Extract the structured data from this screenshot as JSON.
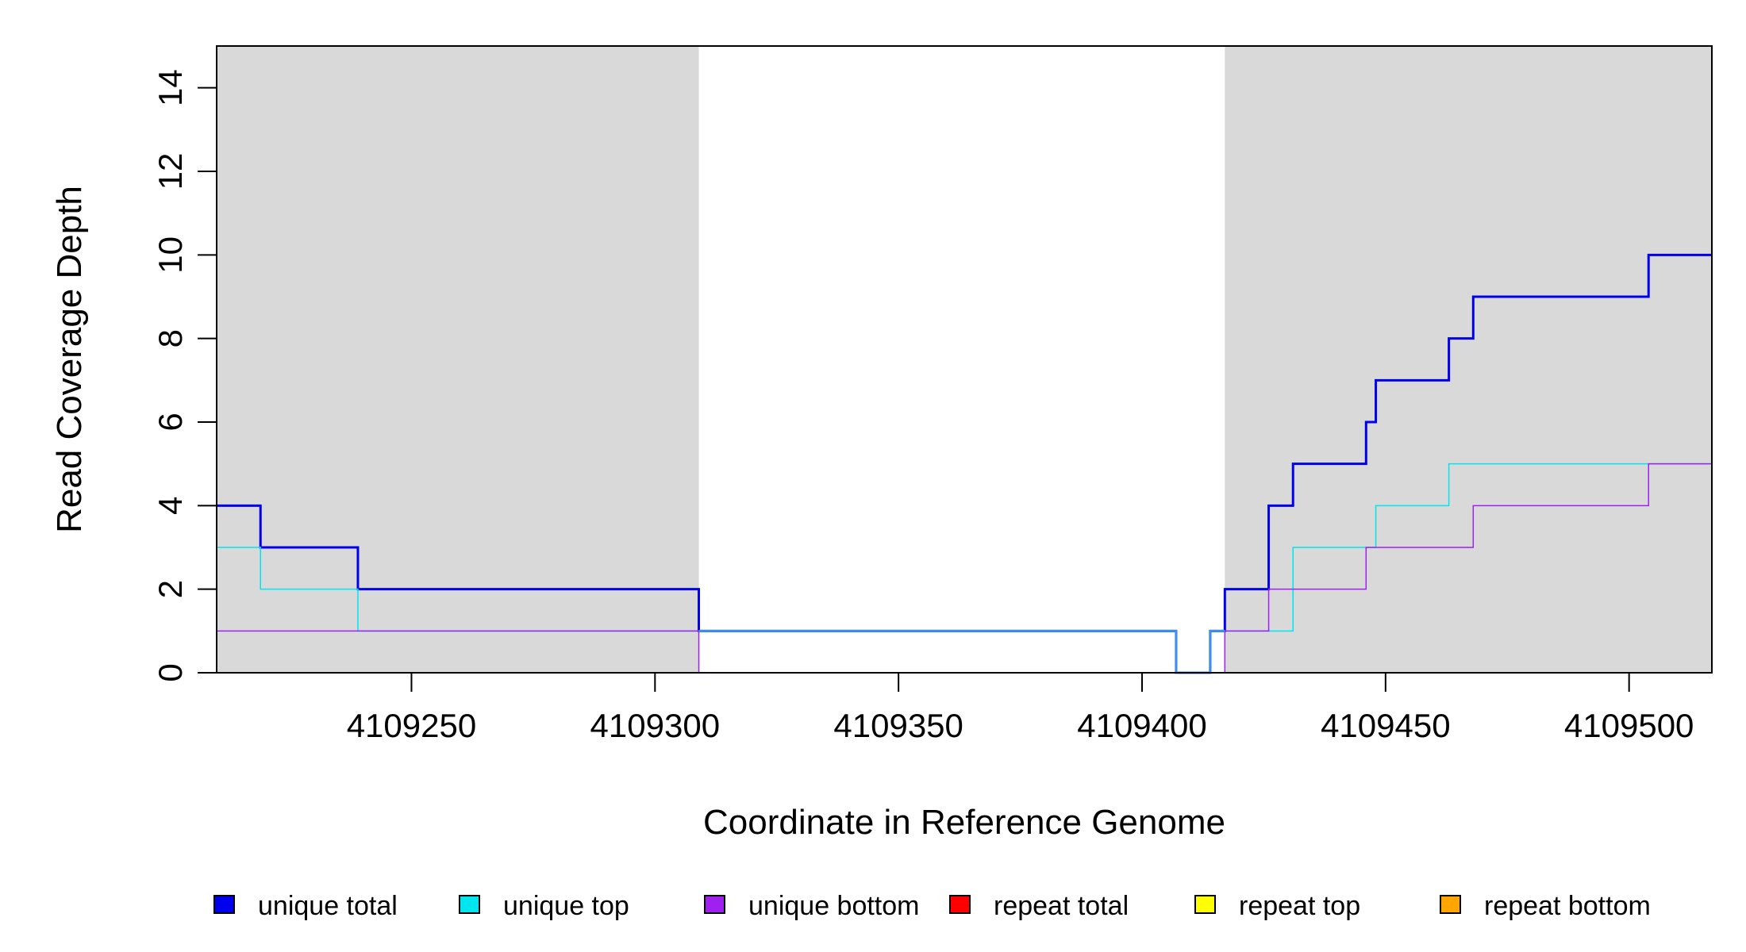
{
  "chart_data": {
    "type": "line",
    "title": "",
    "xlabel": "Coordinate in Reference Genome",
    "ylabel": "Read Coverage Depth",
    "xlim": [
      4109210,
      4109517
    ],
    "ylim": [
      0,
      15
    ],
    "x_ticks": [
      4109250,
      4109300,
      4109350,
      4109400,
      4109450,
      4109500
    ],
    "x_tick_labels": [
      "4109250",
      "4109300",
      "4109350",
      "4109400",
      "4109450",
      "4109500"
    ],
    "y_ticks": [
      0,
      2,
      4,
      6,
      8,
      10,
      12,
      14
    ],
    "y_tick_labels": [
      "0",
      "2",
      "4",
      "6",
      "8",
      "10",
      "12",
      "14"
    ],
    "grid": false,
    "shaded_regions": [
      {
        "x_start": 4109210,
        "x_end": 4109309,
        "color": "#d9d9d9"
      },
      {
        "x_start": 4109417,
        "x_end": 4109517,
        "color": "#d9d9d9"
      }
    ],
    "legend_position": "bottom",
    "series": [
      {
        "name": "unique total",
        "color": "#0000ee",
        "line_width": 3,
        "x": [
          4109210,
          4109219,
          4109239,
          4109309,
          4109407,
          4109414,
          4109417,
          4109426,
          4109431,
          4109446,
          4109448,
          4109463,
          4109468,
          4109504,
          4109517
        ],
        "y": [
          4,
          3,
          2,
          1,
          0,
          1,
          2,
          4,
          5,
          6,
          7,
          8,
          9,
          10,
          10
        ]
      },
      {
        "name": "unique top",
        "color": "#00e5ee",
        "line_width": 1.5,
        "x": [
          4109210,
          4109219,
          4109239,
          4109309,
          4109407,
          4109414,
          4109417,
          4109431,
          4109448,
          4109463,
          4109517
        ],
        "y": [
          3,
          2,
          1,
          1,
          0,
          1,
          1,
          3,
          4,
          5,
          5
        ]
      },
      {
        "name": "unique bottom",
        "color": "#a020f0",
        "line_width": 1.5,
        "x": [
          4109210,
          4109309,
          4109417,
          4109426,
          4109446,
          4109468,
          4109504,
          4109517
        ],
        "y": [
          1,
          0,
          1,
          2,
          3,
          4,
          5,
          5
        ]
      },
      {
        "name": "repeat total",
        "color": "#ff0000",
        "line_width": 1.5,
        "x": [
          4109210,
          4109517
        ],
        "y": [
          0,
          0
        ]
      },
      {
        "name": "repeat top",
        "color": "#ffff00",
        "line_width": 1.5,
        "x": [
          4109210,
          4109517
        ],
        "y": [
          0,
          0
        ]
      },
      {
        "name": "repeat bottom",
        "color": "#ffa500",
        "line_width": 2,
        "x": [
          4109210,
          4109517
        ],
        "y": [
          0,
          0
        ]
      },
      {
        "name": "",
        "color": "#3a8eee",
        "line_width": 3,
        "x": [
          4109309,
          4109407,
          4109414,
          4109417
        ],
        "y": [
          1,
          0,
          1,
          1
        ]
      }
    ]
  }
}
